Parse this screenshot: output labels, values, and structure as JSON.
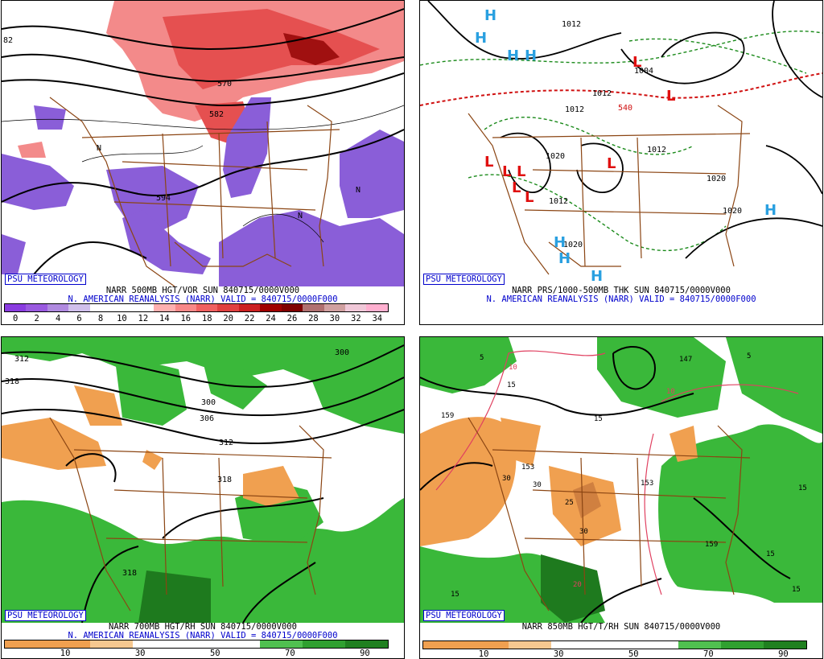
{
  "panels": [
    {
      "id": "p500",
      "badge": "PSU METEOROLOGY",
      "line1": "NARR 500MB HGT/VOR SUN 840715/0000V000",
      "line2": "N. AMERICAN REANALYSIS (NARR) VALID = 840715/0000F000",
      "map_labels": [
        "82",
        "570",
        "582",
        "594",
        "N"
      ],
      "scale_colors": [
        "#8a3ce0",
        "#9a5ae0",
        "#b08ae0",
        "#d0c0ec",
        "#ffffff",
        "#ffffff",
        "#ffffff",
        "#ffb0b0",
        "#f88888",
        "#f06060",
        "#e04040",
        "#cc2020",
        "#a00000",
        "#800000",
        "#b07070",
        "#d0a0a0",
        "#f0c8d8",
        "#ffb0d0"
      ],
      "scale_ticks": [
        "0",
        "2",
        "4",
        "6",
        "8",
        "10",
        "12",
        "14",
        "16",
        "18",
        "20",
        "22",
        "24",
        "26",
        "28",
        "30",
        "32",
        "34"
      ]
    },
    {
      "id": "pmsl",
      "badge": "PSU METEOROLOGY",
      "line1": "NARR PRS/1000-500MB THK SUN 840715/0000V000",
      "line2": "N. AMERICAN REANALYSIS (NARR) VALID = 840715/0000F000",
      "map_labels": [
        "1012",
        "1004",
        "1012",
        "1012",
        "1020",
        "1012",
        "1012",
        "1020",
        "1020",
        "1020",
        "540",
        "H",
        "L"
      ]
    },
    {
      "id": "p700",
      "badge": "PSU METEOROLOGY",
      "line1": "NARR 700MB HGT/RH SUN 840715/0000V000",
      "line2": "N. AMERICAN REANALYSIS (NARR) VALID = 840715/0000F000",
      "map_labels": [
        "312",
        "318",
        "300",
        "306",
        "312",
        "318",
        "318",
        "300"
      ],
      "scale_colors": [
        "#f0a050",
        "#f0a050",
        "#f6c890",
        "#ffffff",
        "#ffffff",
        "#ffffff",
        "#50c050",
        "#30a030",
        "#208020"
      ],
      "scale_ticks": [
        "10",
        "30",
        "50",
        "70",
        "90"
      ]
    },
    {
      "id": "p850",
      "badge": "PSU METEOROLOGY",
      "line1": "NARR 850MB HGT/T/RH SUN 840715/0000V000",
      "line2": "",
      "map_labels": [
        "5",
        "10",
        "147",
        "5",
        "15",
        "159",
        "15",
        "153",
        "153",
        "25",
        "30",
        "30",
        "30",
        "20",
        "15",
        "159",
        "15",
        "15",
        "15",
        "10"
      ],
      "scale_colors": [
        "#f0a050",
        "#f0a050",
        "#f6c890",
        "#ffffff",
        "#ffffff",
        "#ffffff",
        "#50c050",
        "#30a030",
        "#208020"
      ],
      "scale_ticks": [
        "10",
        "30",
        "50",
        "70",
        "90"
      ]
    }
  ]
}
